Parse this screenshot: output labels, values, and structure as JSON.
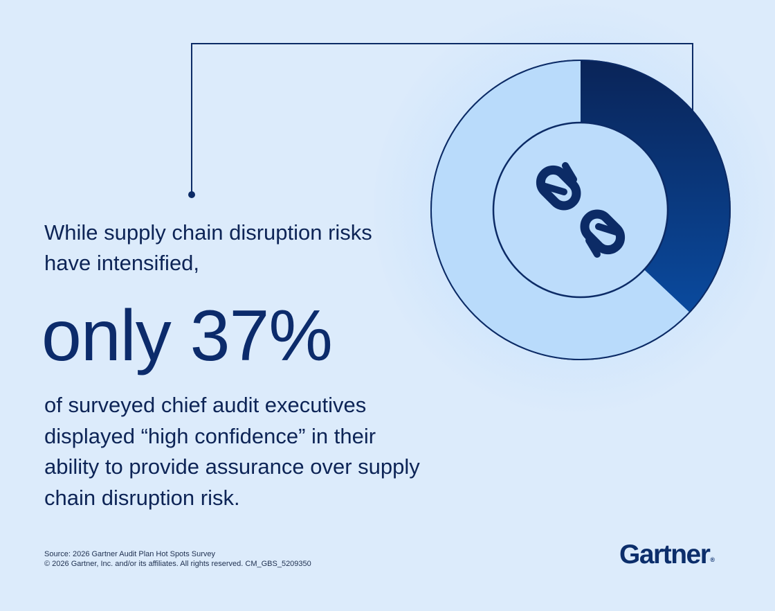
{
  "chart_data": {
    "type": "pie",
    "values": [
      37,
      63
    ],
    "colors": [
      "#0a2a66",
      "#b9dbfb"
    ]
  },
  "text": {
    "lead": "While supply chain disruption risks have intensified,",
    "highlight": "only 37%",
    "body": "of surveyed chief audit executives displayed “high confidence” in their ability to provide assurance over supply chain disruption risk."
  },
  "footer": {
    "source": "Source: 2026 Gartner Audit Plan Hot Spots Survey",
    "copyright": "© 2026 Gartner, Inc. and/or its affiliates. All rights reserved. CM_GBS_5209350"
  },
  "logo": {
    "text": "Gartner",
    "mark": "®"
  },
  "icons": {
    "center": "broken-chain-icon"
  },
  "colors": {
    "background": "#dcebfb",
    "navy": "#0a2a66",
    "light_blue": "#b9dbfb"
  }
}
